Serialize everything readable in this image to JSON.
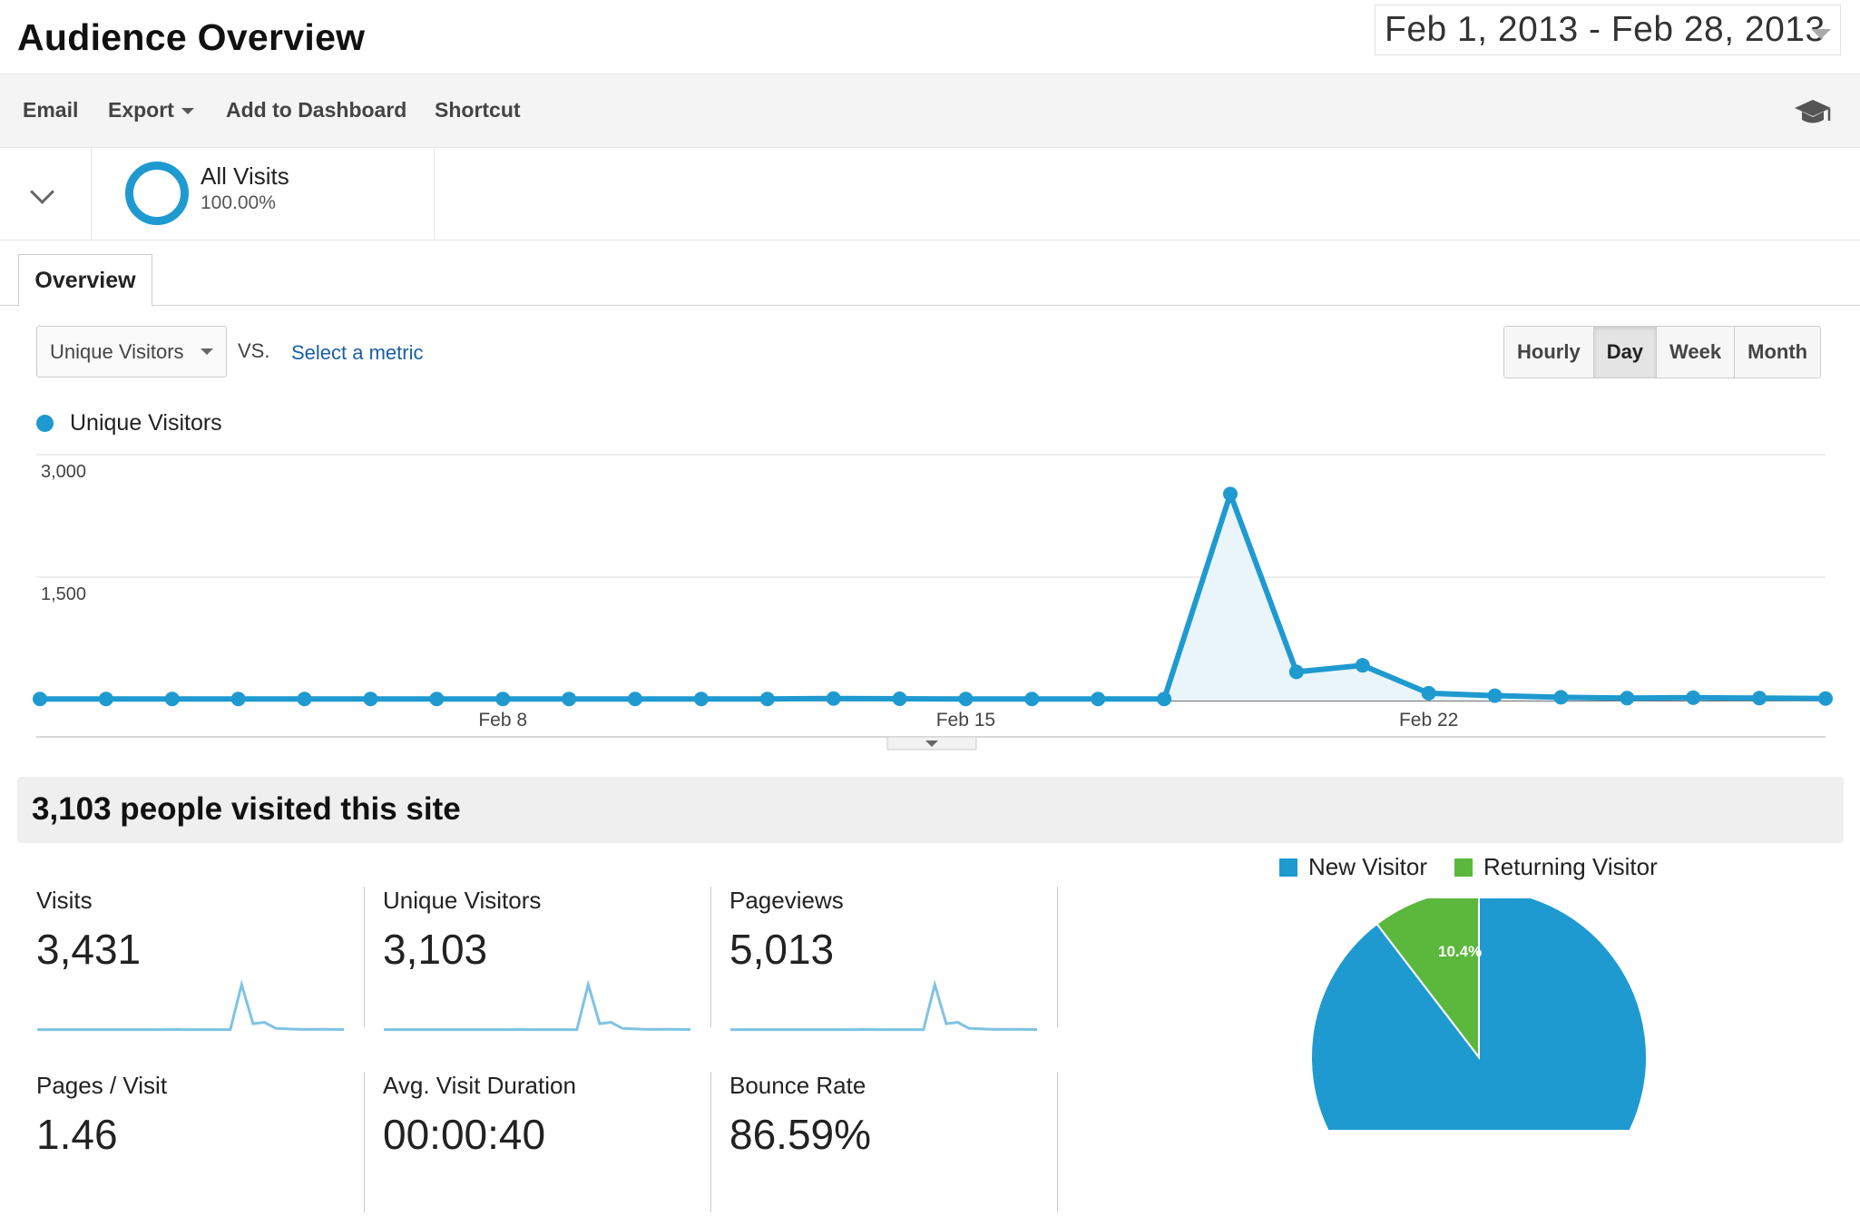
{
  "header": {
    "title": "Audience Overview",
    "date_range": "Feb 1, 2013 - Feb 28, 2013"
  },
  "toolbar": {
    "email": "Email",
    "export": "Export",
    "add_to_dashboard": "Add to Dashboard",
    "shortcut": "Shortcut",
    "help_icon": "graduation-cap-icon"
  },
  "segment": {
    "name": "All Visits",
    "percent": "100.00%"
  },
  "tabs": [
    {
      "label": "Overview",
      "active": true
    }
  ],
  "metric_controls": {
    "primary_metric": "Unique Visitors",
    "vs_label": "VS.",
    "select_metric": "Select a metric",
    "granularity": [
      {
        "label": "Hourly",
        "active": false
      },
      {
        "label": "Day",
        "active": true
      },
      {
        "label": "Week",
        "active": false
      },
      {
        "label": "Month",
        "active": false
      }
    ]
  },
  "chart_data": {
    "type": "line",
    "series": [
      {
        "name": "Unique Visitors",
        "color": "#1e9ad0",
        "values": [
          20,
          20,
          20,
          20,
          20,
          20,
          20,
          20,
          20,
          20,
          20,
          20,
          25,
          22,
          20,
          20,
          20,
          20,
          2520,
          350,
          430,
          90,
          60,
          40,
          30,
          35,
          30,
          25
        ]
      }
    ],
    "x": [
      "Feb 1",
      "Feb 2",
      "Feb 3",
      "Feb 4",
      "Feb 5",
      "Feb 6",
      "Feb 7",
      "Feb 8",
      "Feb 9",
      "Feb 10",
      "Feb 11",
      "Feb 12",
      "Feb 13",
      "Feb 14",
      "Feb 15",
      "Feb 16",
      "Feb 17",
      "Feb 18",
      "Feb 19",
      "Feb 20",
      "Feb 21",
      "Feb 22",
      "Feb 23",
      "Feb 24",
      "Feb 25",
      "Feb 26",
      "Feb 27",
      "Feb 28"
    ],
    "x_tick_labels": [
      {
        "index": 7,
        "label": "Feb 8"
      },
      {
        "index": 14,
        "label": "Feb 15"
      },
      {
        "index": 21,
        "label": "Feb 22"
      }
    ],
    "y_tick_labels": [
      "3,000",
      "1,500"
    ],
    "ylim": [
      0,
      3000
    ],
    "grid": true,
    "fill_color": "#e9f4fb"
  },
  "summary": {
    "headline": "3,103 people visited this site",
    "stats": [
      {
        "label": "Visits",
        "value": "3,431"
      },
      {
        "label": "Unique Visitors",
        "value": "3,103"
      },
      {
        "label": "Pageviews",
        "value": "5,013"
      },
      {
        "label": "Pages / Visit",
        "value": "1.46"
      },
      {
        "label": "Avg. Visit Duration",
        "value": "00:00:40"
      },
      {
        "label": "Bounce Rate",
        "value": "86.59%"
      }
    ]
  },
  "pie_chart": {
    "type": "pie",
    "slices": [
      {
        "label": "New Visitor",
        "value": 89.6,
        "color": "#1e9ad0"
      },
      {
        "label": "Returning Visitor",
        "value": 10.4,
        "color": "#5bb83d"
      }
    ],
    "visible_data_label": "10.4%"
  }
}
